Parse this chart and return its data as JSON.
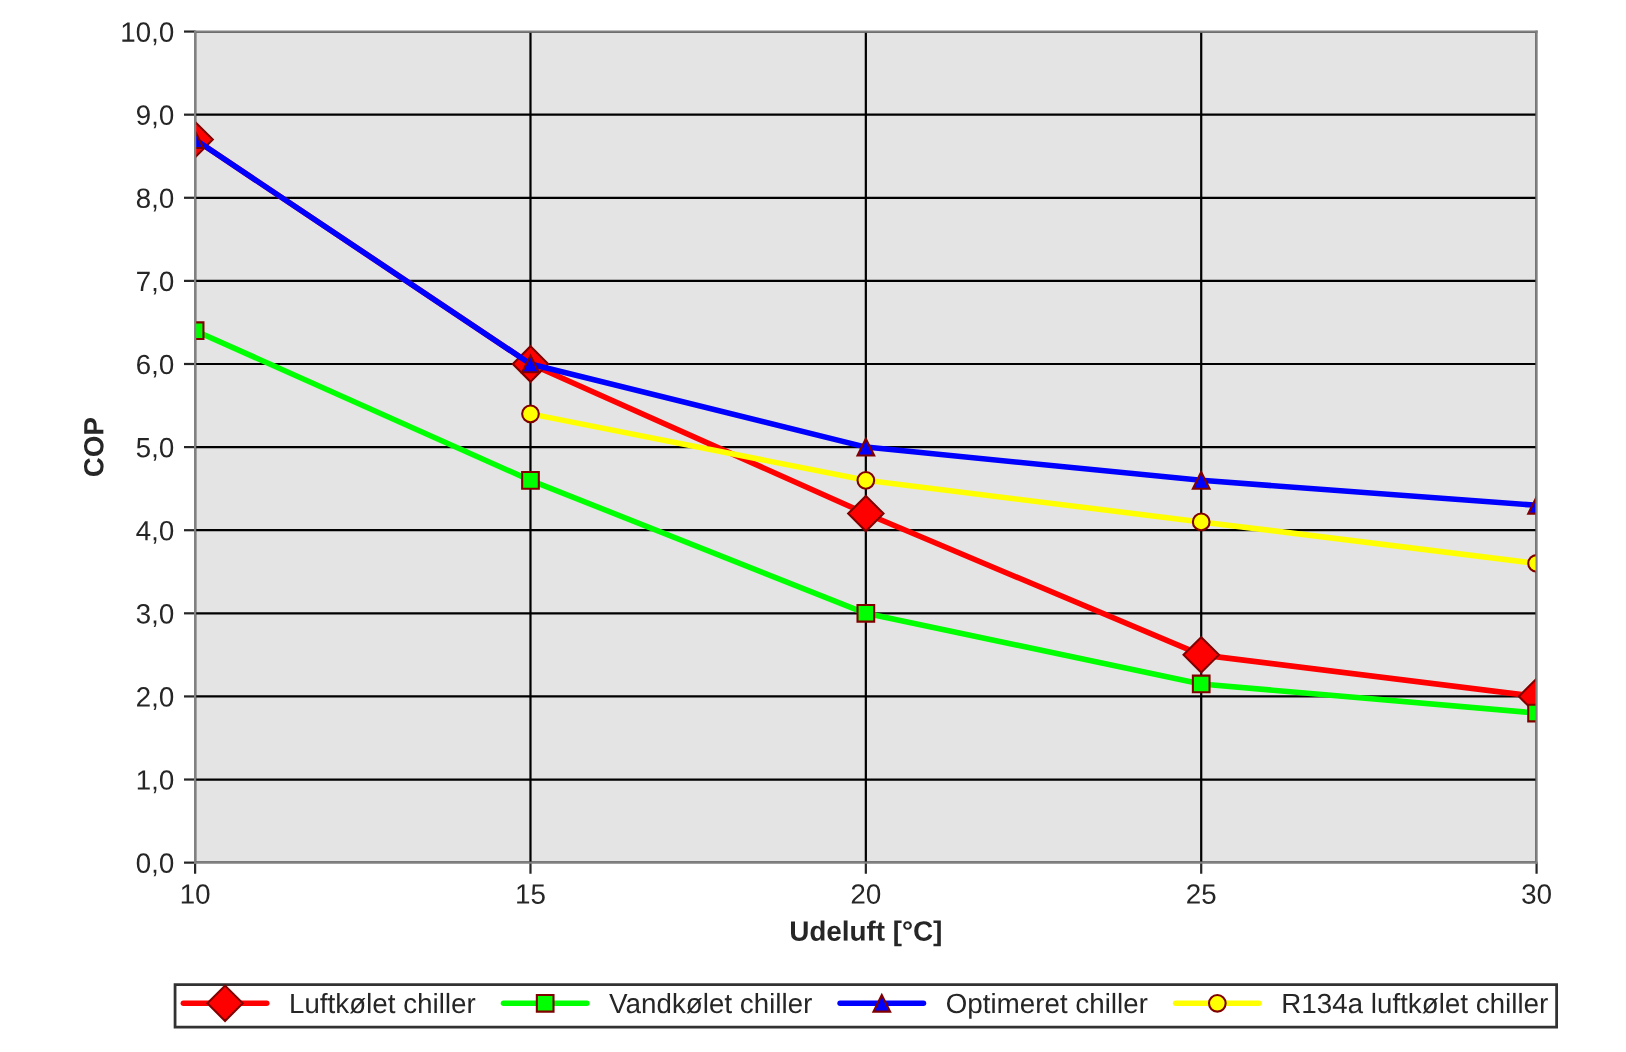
{
  "chart_data": {
    "type": "line",
    "xlabel": "Udeluft [°C]",
    "ylabel": "COP",
    "xlim": [
      10,
      30
    ],
    "xticks": [
      10,
      15,
      20,
      25,
      30
    ],
    "ylim": [
      0,
      10
    ],
    "yticks": [
      {
        "value": 0,
        "label": "0,0"
      },
      {
        "value": 1,
        "label": "1,0"
      },
      {
        "value": 2,
        "label": "2,0"
      },
      {
        "value": 3,
        "label": "3,0"
      },
      {
        "value": 4,
        "label": "4,0"
      },
      {
        "value": 5,
        "label": "5,0"
      },
      {
        "value": 6,
        "label": "6,0"
      },
      {
        "value": 7,
        "label": "7,0"
      },
      {
        "value": 8,
        "label": "8,0"
      },
      {
        "value": 9,
        "label": "9,0"
      },
      {
        "value": 10,
        "label": "10,0"
      }
    ],
    "grid": true,
    "legend": "bottom",
    "line_style": "solid",
    "series": [
      {
        "name": "Luftkølet chiller",
        "color": "#ff0000",
        "marker": "diamond",
        "x": [
          10,
          15,
          20,
          25,
          30
        ],
        "values": [
          8.7,
          6.0,
          4.2,
          2.5,
          2.0
        ]
      },
      {
        "name": "Vandkølet chiller",
        "color": "#00ff00",
        "marker": "square",
        "x": [
          10,
          15,
          20,
          25,
          30
        ],
        "values": [
          6.4,
          4.6,
          3.0,
          2.15,
          1.8
        ]
      },
      {
        "name": "Optimeret chiller",
        "color": "#0000ff",
        "marker": "triangle",
        "x": [
          10,
          15,
          20,
          25,
          30
        ],
        "values": [
          8.7,
          6.0,
          5.0,
          4.6,
          4.3
        ]
      },
      {
        "name": "R134a luftkølet chiller",
        "color": "#ffff00",
        "marker": "circle",
        "x": [
          15,
          20,
          25,
          30
        ],
        "values": [
          5.4,
          4.6,
          4.1,
          3.6
        ]
      }
    ]
  }
}
